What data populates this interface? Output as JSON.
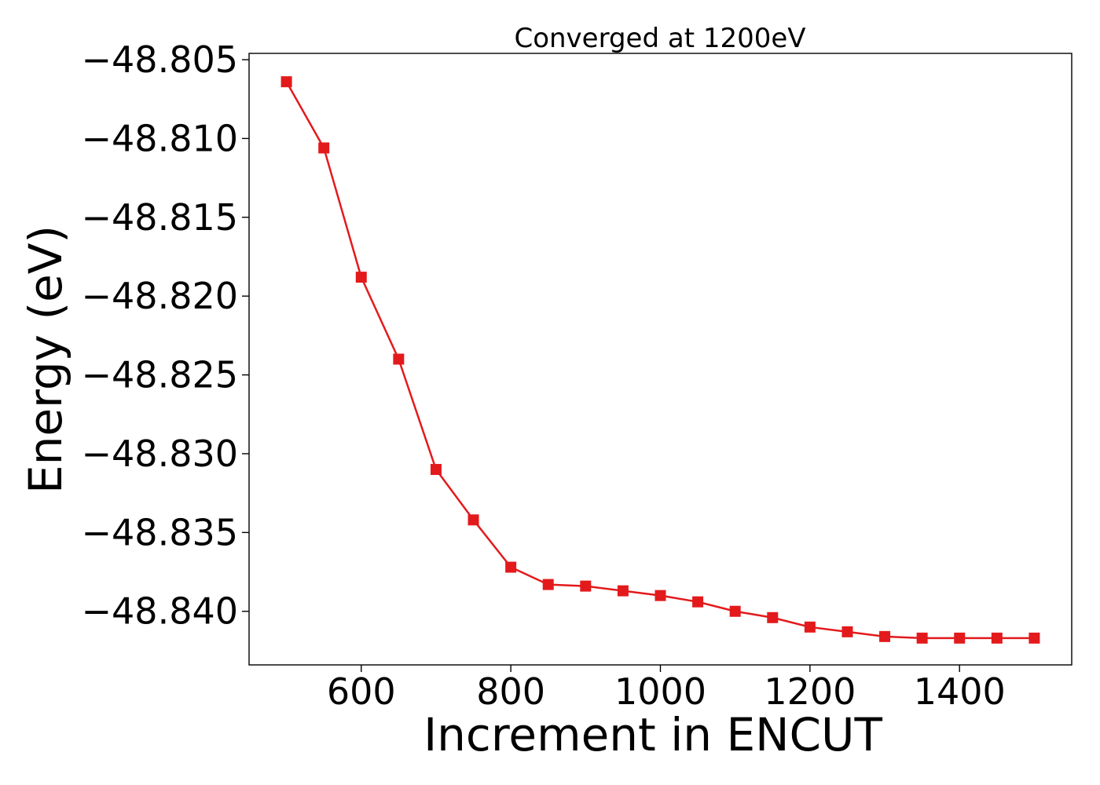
{
  "chart_data": {
    "type": "line",
    "title": "Converged at 1200eV",
    "xlabel": "Increment in ENCUT",
    "ylabel": "Energy (eV)",
    "xlim": [
      450,
      1550
    ],
    "ylim": [
      -48.8434,
      -48.8046
    ],
    "x_ticks": [
      600,
      800,
      1000,
      1200,
      1400
    ],
    "x_tick_labels": [
      "600",
      "800",
      "1000",
      "1200",
      "1400"
    ],
    "y_ticks": [
      -48.805,
      -48.81,
      -48.815,
      -48.82,
      -48.825,
      -48.83,
      -48.835,
      -48.84
    ],
    "y_tick_labels": [
      "−48.805",
      "−48.810",
      "−48.815",
      "−48.820",
      "−48.825",
      "−48.830",
      "−48.835",
      "−48.840"
    ],
    "grid": false,
    "legend": "none",
    "series": [
      {
        "color": "#e31a1c",
        "marker": "square",
        "x": [
          500,
          550,
          600,
          650,
          700,
          750,
          800,
          850,
          900,
          950,
          1000,
          1050,
          1100,
          1150,
          1200,
          1250,
          1300,
          1350,
          1400,
          1450,
          1500
        ],
        "y": [
          -48.8064,
          -48.8106,
          -48.8188,
          -48.824,
          -48.831,
          -48.8342,
          -48.8372,
          -48.8383,
          -48.8384,
          -48.8387,
          -48.839,
          -48.8394,
          -48.84,
          -48.8404,
          -48.841,
          -48.8413,
          -48.8416,
          -48.8417,
          -48.8417,
          -48.8417,
          -48.8417
        ]
      }
    ]
  }
}
